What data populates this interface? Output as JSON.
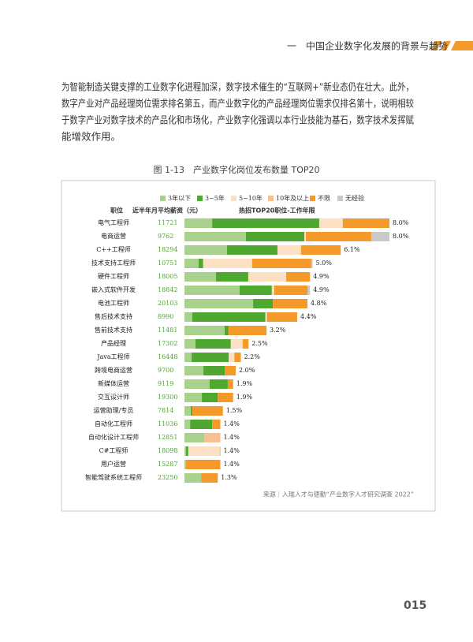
{
  "header": {
    "title": "一　中国企业数字化发展的背景与趋势"
  },
  "body": {
    "lines": [
      "为智能制造关键支撑的工业数字化进程加深，数字技术催生的“互联网+”新业态仍在壮大。此外，",
      "数字产业对产品经理岗位需求排名第五，而产业数字化的产品经理岗位需求仅排名第十，说明相较",
      "于数字产业对数字技术的产品化和市场化，产业数字化强调以本行业技能为基石，数字技术发挥赋",
      "能增效作用。"
    ]
  },
  "figure": {
    "caption": "图 1-13　产业数字化岗位发布数量 TOP20",
    "source": "来源｜入瑞人才与德勤“产业数字人才研究调查 2022”"
  },
  "chart_data": {
    "type": "bar",
    "orientation": "horizontal",
    "stacked": true,
    "column_headers": [
      "职位",
      "近半年月平均薪资（元）",
      "热招TOP20职位-工作年限"
    ],
    "categories": [
      "电气工程师",
      "电商运营",
      "C++工程师",
      "技术支持工程师",
      "硬件工程师",
      "嵌入式软件开发",
      "电池工程师",
      "售后技术支持",
      "售前技术支持",
      "产品经理",
      "Java工程师",
      "跨境电商运营",
      "新媒体运营",
      "交互设计师",
      "运营助理/专员",
      "自动化工程师",
      "自动化设计工程师",
      "C#工程师",
      "用户运营",
      "智能驾驶系统工程师"
    ],
    "salaries": [
      11721,
      9762,
      18294,
      10751,
      18005,
      18842,
      20103,
      8990,
      11481,
      17302,
      16448,
      9700,
      9119,
      19300,
      7814,
      11036,
      12851,
      18098,
      15287,
      23250
    ],
    "series": [
      {
        "name": "3年以下",
        "color": "#a9d18e",
        "values": [
          1.08,
          2.4,
          1.66,
          0.55,
          1.23,
          2.15,
          2.68,
          0.3,
          1.57,
          0.43,
          0.28,
          0.74,
          0.98,
          0.68,
          0.25,
          0.22,
          0.77,
          0.06,
          0.06,
          0.65
        ]
      },
      {
        "name": "3~5年",
        "color": "#4ea72e",
        "values": [
          4.18,
          2.28,
          1.97,
          0.18,
          1.26,
          1.26,
          0.77,
          2.86,
          0.15,
          1.38,
          1.45,
          0.83,
          0.71,
          0.62,
          0.06,
          0.86,
          0,
          0.09,
          0,
          0
        ]
      },
      {
        "name": "5~10年",
        "color": "#fbe0c4",
        "values": [
          0.92,
          0.06,
          0.92,
          1.91,
          1.48,
          0.09,
          0,
          0.06,
          0,
          0.46,
          0.22,
          0,
          0,
          0,
          0,
          0,
          0,
          1.23,
          0,
          0
        ]
      },
      {
        "name": "10年及以上",
        "color": "#f8c08e",
        "values": [
          0,
          0,
          0,
          0,
          0,
          0,
          0,
          0,
          0,
          0,
          0,
          0,
          0,
          0,
          0,
          0,
          0.63,
          0,
          0,
          0
        ]
      },
      {
        "name": "不限",
        "color": "#f39a2b",
        "values": [
          1.82,
          2.55,
          1.55,
          2.31,
          0.93,
          1.3,
          1.35,
          1.18,
          1.48,
          0.23,
          0.25,
          0.43,
          0.21,
          0.6,
          1.19,
          0.32,
          0,
          0.02,
          1.34,
          0.65
        ]
      },
      {
        "name": "无经验",
        "color": "#c9c9c9",
        "values": [
          0,
          0.71,
          0,
          0.05,
          0,
          0.1,
          0,
          0,
          0,
          0,
          0,
          0,
          0,
          0,
          0,
          0,
          0,
          0,
          0,
          0
        ]
      }
    ],
    "total_labels": [
      "8.0%",
      "8.0%",
      "6.1%",
      "5.0%",
      "4.9%",
      "4.9%",
      "4.8%",
      "4.4%",
      "3.2%",
      "2.5%",
      "2.2%",
      "2.0%",
      "1.9%",
      "1.9%",
      "1.5%",
      "1.4%",
      "1.4%",
      "1.4%",
      "1.4%",
      "1.3%"
    ]
  },
  "page_number": "015"
}
